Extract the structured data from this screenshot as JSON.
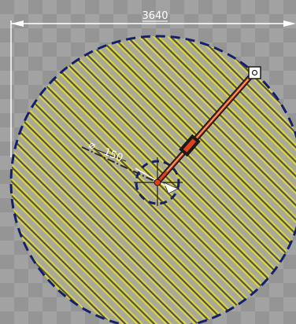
{
  "dimension": {
    "span_label": "3640",
    "radius_label": "150",
    "diameter_symbol": "⌀"
  },
  "colors": {
    "background": "#9c9c9c",
    "hatch_yellow": "#d9d21a",
    "hatch_dark": "#3a3a3a",
    "circle_outline": "#14206b",
    "arrow_red": "#e0401c",
    "dimension_line": "#ffffff",
    "leader_dark": "#2a2a2a"
  },
  "icons": {
    "handle": "square-grip-handle",
    "pivot": "center-crosshair"
  }
}
